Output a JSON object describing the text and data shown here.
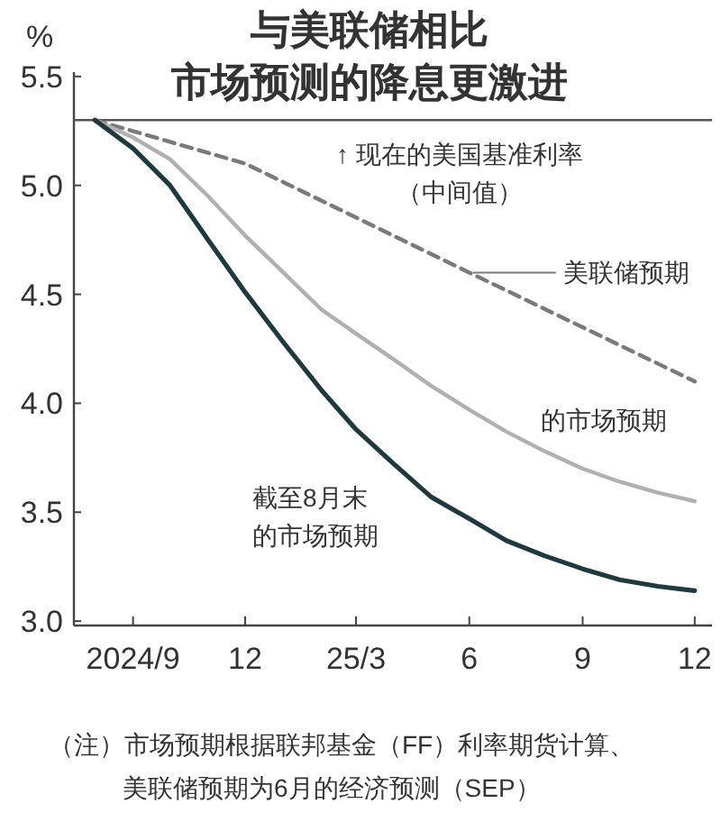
{
  "chart_data": {
    "type": "line",
    "title": "与美联储相比",
    "subtitle": "市场预测的降息更激进",
    "ylabel": "%",
    "xlim": [
      "2024-07-15",
      "2025-12-15"
    ],
    "ylim": [
      2.98,
      5.52
    ],
    "xticks": [
      {
        "value": "2024-09",
        "label": "2024/9"
      },
      {
        "value": "2024-12",
        "label": "12"
      },
      {
        "value": "2025-03",
        "label": "25/3"
      },
      {
        "value": "2025-06",
        "label": "6"
      },
      {
        "value": "2025-09",
        "label": "9"
      },
      {
        "value": "2025-12",
        "label": "12"
      }
    ],
    "yticks": [
      {
        "value": 3,
        "label": "3.0"
      },
      {
        "value": 3.5,
        "label": "3.5"
      },
      {
        "value": 4,
        "label": "4.0"
      },
      {
        "value": 4.5,
        "label": "4.5"
      },
      {
        "value": 5,
        "label": "5.0"
      },
      {
        "value": 5.5,
        "label": "5.5"
      }
    ],
    "ref_lines": [
      {
        "axis": "y",
        "value": 5.3,
        "label": "↑ 现在的美国基准利率（中间值）",
        "color": "#555555"
      }
    ],
    "series": [
      {
        "name": "美联储预期",
        "color": "#7a7a7a",
        "line_style": "dashed",
        "x": [
          "2024-08",
          "2024-12",
          "2025-06",
          "2025-12"
        ],
        "values": [
          5.3,
          5.1,
          4.6,
          4.1
        ]
      },
      {
        "name": "的市场预期",
        "color": "#b0b0b0",
        "line_style": "solid",
        "x": [
          "2024-08",
          "2024-09",
          "2024-10",
          "2024-11",
          "2024-12",
          "2025-01",
          "2025-02",
          "2025-03",
          "2025-04",
          "2025-05",
          "2025-06",
          "2025-07",
          "2025-08",
          "2025-09",
          "2025-10",
          "2025-11",
          "2025-12"
        ],
        "values": [
          5.3,
          5.22,
          5.12,
          4.95,
          4.77,
          4.6,
          4.43,
          4.32,
          4.2,
          4.08,
          3.97,
          3.87,
          3.78,
          3.7,
          3.64,
          3.59,
          3.55
        ]
      },
      {
        "name": "截至8月末的市场预期",
        "color": "#1f3a3d",
        "line_style": "solid",
        "x": [
          "2024-08",
          "2024-09",
          "2024-10",
          "2024-11",
          "2024-12",
          "2025-01",
          "2025-02",
          "2025-03",
          "2025-04",
          "2025-05",
          "2025-06",
          "2025-07",
          "2025-08",
          "2025-09",
          "2025-10",
          "2025-11",
          "2025-12"
        ],
        "values": [
          5.3,
          5.17,
          5.0,
          4.75,
          4.51,
          4.28,
          4.06,
          3.88,
          3.72,
          3.57,
          3.47,
          3.37,
          3.3,
          3.24,
          3.19,
          3.16,
          3.14
        ]
      }
    ],
    "annotations": [
      "（注）市场预期根据联邦基金（FF）利率期货计算、美联储预期为6月的经济预测（SEP）"
    ]
  }
}
